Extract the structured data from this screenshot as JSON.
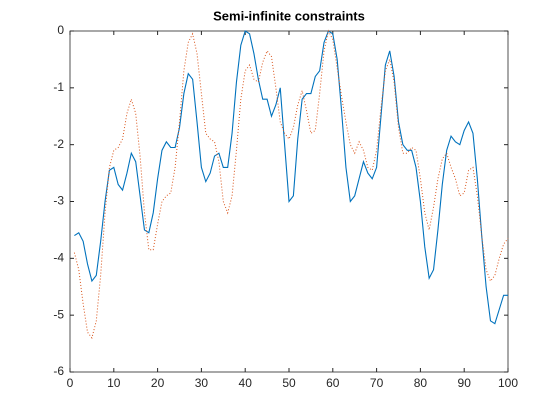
{
  "chart_data": {
    "type": "line",
    "title": "Semi-infinite constraints",
    "x": [
      1,
      2,
      3,
      4,
      5,
      6,
      7,
      8,
      9,
      10,
      11,
      12,
      13,
      14,
      15,
      16,
      17,
      18,
      19,
      20,
      21,
      22,
      23,
      24,
      25,
      26,
      27,
      28,
      29,
      30,
      31,
      32,
      33,
      34,
      35,
      36,
      37,
      38,
      39,
      40,
      41,
      42,
      43,
      44,
      45,
      46,
      47,
      48,
      49,
      50,
      51,
      52,
      53,
      54,
      55,
      56,
      57,
      58,
      59,
      60,
      61,
      62,
      63,
      64,
      65,
      66,
      67,
      68,
      69,
      70,
      71,
      72,
      73,
      74,
      75,
      76,
      77,
      78,
      79,
      80,
      81,
      82,
      83,
      84,
      85,
      86,
      87,
      88,
      89,
      90,
      91,
      92,
      93,
      94,
      95,
      96,
      97,
      98,
      99,
      100
    ],
    "series": [
      {
        "color": "#0072bd",
        "style": "solid",
        "values": [
          -3.6,
          -3.55,
          -3.7,
          -4.1,
          -4.4,
          -4.3,
          -3.7,
          -3.0,
          -2.45,
          -2.4,
          -2.7,
          -2.8,
          -2.5,
          -2.15,
          -2.3,
          -2.9,
          -3.5,
          -3.55,
          -3.2,
          -2.6,
          -2.1,
          -1.95,
          -2.05,
          -2.05,
          -1.7,
          -1.1,
          -0.75,
          -0.85,
          -1.6,
          -2.4,
          -2.65,
          -2.5,
          -2.2,
          -2.15,
          -2.4,
          -2.4,
          -1.8,
          -0.9,
          -0.25,
          0,
          -0.05,
          -0.4,
          -0.85,
          -1.2,
          -1.2,
          -1.5,
          -1.3,
          -1.0,
          -2.0,
          -3.0,
          -2.9,
          -1.9,
          -1.2,
          -1.1,
          -1.1,
          -0.8,
          -0.7,
          -0.2,
          0,
          -0.05,
          -0.5,
          -1.4,
          -2.4,
          -3.0,
          -2.9,
          -2.6,
          -2.3,
          -2.5,
          -2.6,
          -2.4,
          -1.5,
          -0.6,
          -0.35,
          -0.8,
          -1.6,
          -2.0,
          -2.1,
          -2.1,
          -2.4,
          -3.0,
          -3.8,
          -4.35,
          -4.2,
          -3.5,
          -2.7,
          -2.1,
          -1.85,
          -1.95,
          -2.0,
          -1.75,
          -1.6,
          -1.8,
          -2.6,
          -3.6,
          -4.5,
          -5.1,
          -5.15,
          -4.9,
          -4.65,
          -4.65
        ]
      },
      {
        "color": "#d95319",
        "style": "dotted",
        "values": [
          -3.9,
          -4.2,
          -4.8,
          -5.3,
          -5.4,
          -5.1,
          -4.3,
          -3.2,
          -2.4,
          -2.1,
          -2.05,
          -1.9,
          -1.45,
          -1.2,
          -1.45,
          -2.2,
          -3.2,
          -3.85,
          -3.85,
          -3.4,
          -3.0,
          -2.9,
          -2.85,
          -2.4,
          -1.6,
          -0.7,
          -0.2,
          -0.05,
          -0.4,
          -1.1,
          -1.8,
          -1.9,
          -1.95,
          -2.3,
          -3.0,
          -3.2,
          -2.9,
          -2.1,
          -1.2,
          -0.7,
          -0.6,
          -0.85,
          -0.9,
          -0.55,
          -0.35,
          -0.45,
          -1.0,
          -1.6,
          -1.8,
          -1.9,
          -1.7,
          -1.3,
          -1.05,
          -1.4,
          -1.8,
          -1.75,
          -1.1,
          -0.35,
          0,
          -0.15,
          -0.65,
          -1.15,
          -1.6,
          -2.0,
          -2.15,
          -1.95,
          -2.1,
          -2.4,
          -2.45,
          -2.1,
          -1.35,
          -0.7,
          -0.5,
          -0.9,
          -1.7,
          -2.15,
          -2.15,
          -2.05,
          -2.1,
          -2.6,
          -3.2,
          -3.5,
          -3.1,
          -2.6,
          -2.25,
          -2.15,
          -2.4,
          -2.6,
          -2.9,
          -2.85,
          -2.45,
          -2.4,
          -2.9,
          -3.6,
          -4.2,
          -4.4,
          -4.3,
          -4.0,
          -3.75,
          -3.65
        ]
      }
    ],
    "xlim": [
      0,
      100
    ],
    "xticks": [
      0,
      10,
      20,
      30,
      40,
      50,
      60,
      70,
      80,
      90,
      100
    ],
    "ylim": [
      -6,
      0
    ],
    "yticks": [
      -6,
      -5,
      -4,
      -3,
      -2,
      -1,
      0
    ]
  }
}
